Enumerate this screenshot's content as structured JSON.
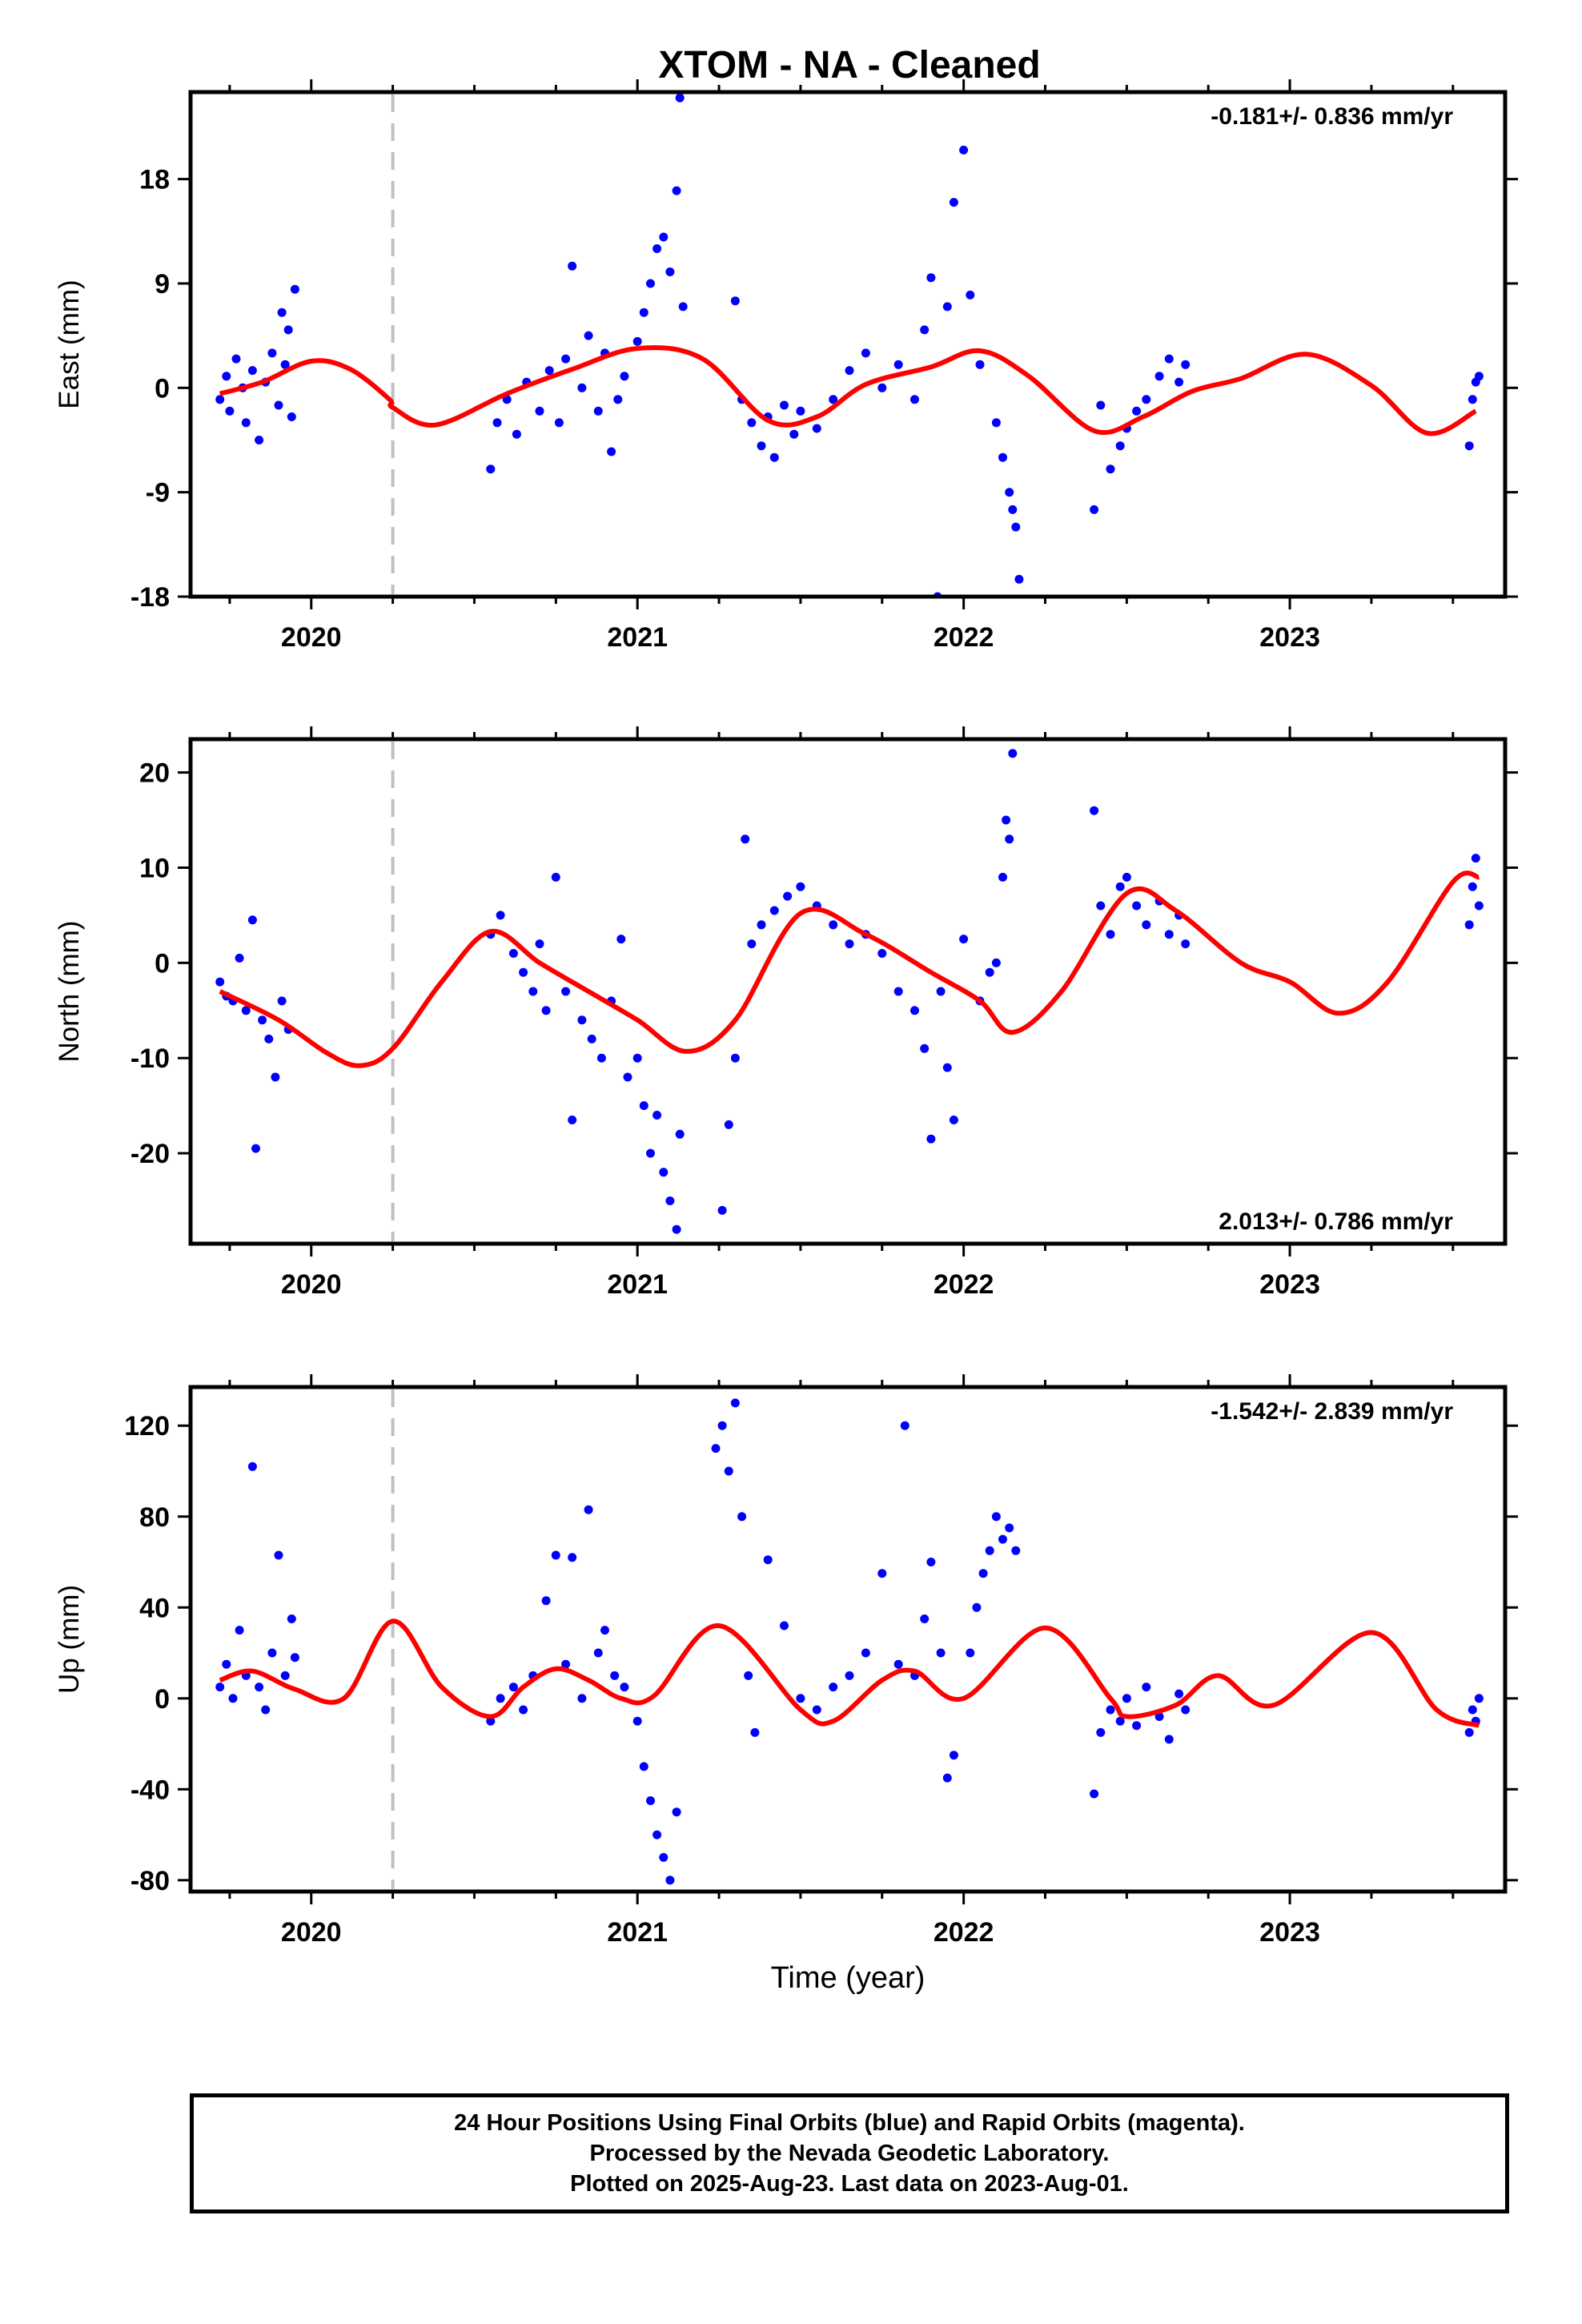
{
  "title": "XTOM  - NA - Cleaned",
  "x_axis": {
    "label": "Time (year)",
    "range": [
      2019.63,
      2023.66
    ],
    "ticks": [
      2020,
      2021,
      2022,
      2023
    ]
  },
  "reference_line": {
    "x": 2020.25,
    "style": "dashed",
    "color": "#c0c0c0"
  },
  "colors": {
    "points": "#0000ff",
    "model": "#ff0000"
  },
  "footer": {
    "line1": "24 Hour Positions Using Final Orbits (blue) and Rapid Orbits (magenta).",
    "line2": "Processed by the Nevada Geodetic Laboratory.",
    "line3": "Plotted on 2025-Aug-23. Last data on 2023-Aug-01."
  },
  "chart_data": [
    {
      "type": "scatter",
      "name": "east",
      "ylabel": "East (mm)",
      "ylim": [
        -18,
        25.5
      ],
      "yticks": [
        18,
        9,
        0,
        -9,
        -18
      ],
      "ytick_labels": [
        "18",
        "9",
        "0",
        "-9",
        "-18"
      ],
      "rate_text": "-0.181+/- 0.836 mm/yr",
      "rate_position": "top-right",
      "model_line": {
        "x": [
          2019.72,
          2019.85,
          2020.0,
          2020.12,
          2020.24,
          2020.25,
          2020.38,
          2020.6,
          2020.8,
          2021.0,
          2021.2,
          2021.4,
          2021.55,
          2021.7,
          2021.9,
          2022.05,
          2022.2,
          2022.4,
          2022.55,
          2022.7,
          2022.85,
          2023.05,
          2023.25,
          2023.42,
          2023.57
        ],
        "y": [
          -0.5,
          0.5,
          2.3,
          1.6,
          -1.0,
          -1.7,
          -3.2,
          -0.5,
          1.6,
          3.4,
          2.5,
          -2.8,
          -2.5,
          0.3,
          1.8,
          3.2,
          1.0,
          -3.7,
          -2.5,
          -0.3,
          0.8,
          2.9,
          0.2,
          -3.9,
          -2.0
        ]
      },
      "points": [
        [
          2019.72,
          -1.0
        ],
        [
          2019.74,
          1.0
        ],
        [
          2019.75,
          -2.0
        ],
        [
          2019.77,
          2.5
        ],
        [
          2019.79,
          0.0
        ],
        [
          2019.8,
          -3.0
        ],
        [
          2019.82,
          1.5
        ],
        [
          2019.84,
          -4.5
        ],
        [
          2019.86,
          0.5
        ],
        [
          2019.88,
          3.0
        ],
        [
          2019.9,
          -1.5
        ],
        [
          2019.91,
          6.5
        ],
        [
          2019.92,
          2.0
        ],
        [
          2019.93,
          5.0
        ],
        [
          2019.94,
          -2.5
        ],
        [
          2019.95,
          8.5
        ],
        [
          2020.55,
          -7.0
        ],
        [
          2020.57,
          -3.0
        ],
        [
          2020.6,
          -1.0
        ],
        [
          2020.63,
          -4.0
        ],
        [
          2020.66,
          0.5
        ],
        [
          2020.7,
          -2.0
        ],
        [
          2020.73,
          1.5
        ],
        [
          2020.76,
          -3.0
        ],
        [
          2020.78,
          2.5
        ],
        [
          2020.8,
          10.5
        ],
        [
          2020.83,
          0.0
        ],
        [
          2020.85,
          4.5
        ],
        [
          2020.88,
          -2.0
        ],
        [
          2020.9,
          3.0
        ],
        [
          2020.92,
          -5.5
        ],
        [
          2020.94,
          -1.0
        ],
        [
          2020.96,
          1.0
        ],
        [
          2021.0,
          4.0
        ],
        [
          2021.02,
          6.5
        ],
        [
          2021.04,
          9.0
        ],
        [
          2021.06,
          12.0
        ],
        [
          2021.08,
          13.0
        ],
        [
          2021.1,
          10.0
        ],
        [
          2021.12,
          17.0
        ],
        [
          2021.13,
          25.0
        ],
        [
          2021.14,
          7.0
        ],
        [
          2021.3,
          7.5
        ],
        [
          2021.32,
          -1.0
        ],
        [
          2021.35,
          -3.0
        ],
        [
          2021.38,
          -5.0
        ],
        [
          2021.4,
          -2.5
        ],
        [
          2021.42,
          -6.0
        ],
        [
          2021.45,
          -1.5
        ],
        [
          2021.48,
          -4.0
        ],
        [
          2021.5,
          -2.0
        ],
        [
          2021.55,
          -3.5
        ],
        [
          2021.6,
          -1.0
        ],
        [
          2021.65,
          1.5
        ],
        [
          2021.7,
          3.0
        ],
        [
          2021.75,
          0.0
        ],
        [
          2021.8,
          2.0
        ],
        [
          2021.85,
          -1.0
        ],
        [
          2021.88,
          5.0
        ],
        [
          2021.9,
          9.5
        ],
        [
          2021.92,
          -18.0
        ],
        [
          2021.95,
          7.0
        ],
        [
          2021.97,
          16.0
        ],
        [
          2022.0,
          20.5
        ],
        [
          2022.02,
          8.0
        ],
        [
          2022.05,
          2.0
        ],
        [
          2022.1,
          -3.0
        ],
        [
          2022.12,
          -6.0
        ],
        [
          2022.14,
          -9.0
        ],
        [
          2022.15,
          -10.5
        ],
        [
          2022.16,
          -12.0
        ],
        [
          2022.17,
          -16.5
        ],
        [
          2022.4,
          -10.5
        ],
        [
          2022.42,
          -1.5
        ],
        [
          2022.45,
          -7.0
        ],
        [
          2022.48,
          -5.0
        ],
        [
          2022.5,
          -3.5
        ],
        [
          2022.53,
          -2.0
        ],
        [
          2022.56,
          -1.0
        ],
        [
          2022.6,
          1.0
        ],
        [
          2022.63,
          2.5
        ],
        [
          2022.66,
          0.5
        ],
        [
          2022.68,
          2.0
        ],
        [
          2023.55,
          -5.0
        ],
        [
          2023.56,
          -1.0
        ],
        [
          2023.57,
          0.5
        ],
        [
          2023.58,
          1.0
        ]
      ]
    },
    {
      "type": "scatter",
      "name": "north",
      "ylabel": "North (mm)",
      "ylim": [
        -29.5,
        23.5
      ],
      "yticks": [
        20,
        10,
        0,
        -10,
        -20
      ],
      "ytick_labels": [
        "20",
        "10",
        "0",
        "-10",
        "-20"
      ],
      "rate_text": "2.013+/- 0.786 mm/yr",
      "rate_position": "bottom-right",
      "model_line": {
        "x": [
          2019.72,
          2019.9,
          2020.05,
          2020.15,
          2020.25,
          2020.4,
          2020.55,
          2020.7,
          2020.85,
          2021.0,
          2021.15,
          2021.3,
          2021.5,
          2021.7,
          2021.9,
          2022.05,
          2022.15,
          2022.3,
          2022.5,
          2022.65,
          2022.85,
          2023.0,
          2023.15,
          2023.3,
          2023.5,
          2023.58
        ],
        "y": [
          -3.0,
          -6.0,
          -9.5,
          -10.8,
          -9.0,
          -2.0,
          3.3,
          0.0,
          -3.0,
          -6.0,
          -9.3,
          -6.0,
          5.2,
          3.0,
          -1.0,
          -4.0,
          -7.3,
          -3.0,
          7.3,
          5.5,
          0.0,
          -2.0,
          -5.3,
          -2.0,
          8.5,
          9.0
        ]
      },
      "points": [
        [
          2019.72,
          -2.0
        ],
        [
          2019.74,
          -3.5
        ],
        [
          2019.76,
          -4.0
        ],
        [
          2019.78,
          0.5
        ],
        [
          2019.8,
          -5.0
        ],
        [
          2019.82,
          4.5
        ],
        [
          2019.83,
          -19.5
        ],
        [
          2019.85,
          -6.0
        ],
        [
          2019.87,
          -8.0
        ],
        [
          2019.89,
          -12.0
        ],
        [
          2019.91,
          -4.0
        ],
        [
          2019.93,
          -7.0
        ],
        [
          2020.55,
          3.0
        ],
        [
          2020.58,
          5.0
        ],
        [
          2020.62,
          1.0
        ],
        [
          2020.65,
          -1.0
        ],
        [
          2020.68,
          -3.0
        ],
        [
          2020.7,
          2.0
        ],
        [
          2020.72,
          -5.0
        ],
        [
          2020.75,
          9.0
        ],
        [
          2020.78,
          -3.0
        ],
        [
          2020.8,
          -16.5
        ],
        [
          2020.83,
          -6.0
        ],
        [
          2020.86,
          -8.0
        ],
        [
          2020.89,
          -10.0
        ],
        [
          2020.92,
          -4.0
        ],
        [
          2020.95,
          2.5
        ],
        [
          2020.97,
          -12.0
        ],
        [
          2021.0,
          -10.0
        ],
        [
          2021.02,
          -15.0
        ],
        [
          2021.04,
          -20.0
        ],
        [
          2021.06,
          -16.0
        ],
        [
          2021.08,
          -22.0
        ],
        [
          2021.1,
          -25.0
        ],
        [
          2021.12,
          -28.0
        ],
        [
          2021.13,
          -18.0
        ],
        [
          2021.26,
          -26.0
        ],
        [
          2021.28,
          -17.0
        ],
        [
          2021.3,
          -10.0
        ],
        [
          2021.33,
          13.0
        ],
        [
          2021.35,
          2.0
        ],
        [
          2021.38,
          4.0
        ],
        [
          2021.42,
          5.5
        ],
        [
          2021.46,
          7.0
        ],
        [
          2021.5,
          8.0
        ],
        [
          2021.55,
          6.0
        ],
        [
          2021.6,
          4.0
        ],
        [
          2021.65,
          2.0
        ],
        [
          2021.7,
          3.0
        ],
        [
          2021.75,
          1.0
        ],
        [
          2021.8,
          -3.0
        ],
        [
          2021.85,
          -5.0
        ],
        [
          2021.88,
          -9.0
        ],
        [
          2021.9,
          -18.5
        ],
        [
          2021.93,
          -3.0
        ],
        [
          2021.95,
          -11.0
        ],
        [
          2021.97,
          -16.5
        ],
        [
          2022.0,
          2.5
        ],
        [
          2022.05,
          -4.0
        ],
        [
          2022.08,
          -1.0
        ],
        [
          2022.1,
          0.0
        ],
        [
          2022.12,
          9.0
        ],
        [
          2022.13,
          15.0
        ],
        [
          2022.14,
          13.0
        ],
        [
          2022.15,
          22.0
        ],
        [
          2022.4,
          16.0
        ],
        [
          2022.42,
          6.0
        ],
        [
          2022.45,
          3.0
        ],
        [
          2022.48,
          8.0
        ],
        [
          2022.5,
          9.0
        ],
        [
          2022.53,
          6.0
        ],
        [
          2022.56,
          4.0
        ],
        [
          2022.6,
          6.5
        ],
        [
          2022.63,
          3.0
        ],
        [
          2022.66,
          5.0
        ],
        [
          2022.68,
          2.0
        ],
        [
          2023.55,
          4.0
        ],
        [
          2023.56,
          8.0
        ],
        [
          2023.57,
          11.0
        ],
        [
          2023.58,
          6.0
        ]
      ]
    },
    {
      "type": "scatter",
      "name": "up",
      "ylabel": "Up (mm)",
      "ylim": [
        -85,
        137
      ],
      "yticks": [
        120,
        80,
        40,
        0,
        -40,
        -80
      ],
      "ytick_labels": [
        "120",
        "80",
        "40",
        "0",
        "-40",
        "-80"
      ],
      "rate_text": "-1.542+/- 2.839 mm/yr",
      "rate_position": "top-right",
      "model_line": {
        "x": [
          2019.72,
          2019.82,
          2019.95,
          2020.1,
          2020.25,
          2020.4,
          2020.55,
          2020.65,
          2020.75,
          2020.85,
          2020.95,
          2021.05,
          2021.25,
          2021.5,
          2021.6,
          2021.75,
          2021.85,
          2022.0,
          2022.25,
          2022.45,
          2022.5,
          2022.65,
          2022.78,
          2022.95,
          2023.25,
          2023.45,
          2023.58
        ],
        "y": [
          8,
          12,
          4,
          0,
          34,
          5,
          -8,
          5,
          13,
          8,
          0,
          1,
          32,
          -5,
          -10,
          8,
          12,
          0,
          31,
          0,
          -8,
          -3,
          10,
          -3,
          29,
          -5,
          -12
        ]
      },
      "points": [
        [
          2019.72,
          5
        ],
        [
          2019.74,
          15
        ],
        [
          2019.76,
          0
        ],
        [
          2019.78,
          30
        ],
        [
          2019.8,
          10
        ],
        [
          2019.82,
          102
        ],
        [
          2019.84,
          5
        ],
        [
          2019.86,
          -5
        ],
        [
          2019.88,
          20
        ],
        [
          2019.9,
          63
        ],
        [
          2019.92,
          10
        ],
        [
          2019.94,
          35
        ],
        [
          2019.95,
          18
        ],
        [
          2020.55,
          -10
        ],
        [
          2020.58,
          0
        ],
        [
          2020.62,
          5
        ],
        [
          2020.65,
          -5
        ],
        [
          2020.68,
          10
        ],
        [
          2020.72,
          43
        ],
        [
          2020.75,
          63
        ],
        [
          2020.78,
          15
        ],
        [
          2020.8,
          62
        ],
        [
          2020.83,
          0
        ],
        [
          2020.85,
          83
        ],
        [
          2020.88,
          20
        ],
        [
          2020.9,
          30
        ],
        [
          2020.93,
          10
        ],
        [
          2020.96,
          5
        ],
        [
          2021.0,
          -10
        ],
        [
          2021.02,
          -30
        ],
        [
          2021.04,
          -45
        ],
        [
          2021.06,
          -60
        ],
        [
          2021.08,
          -70
        ],
        [
          2021.1,
          -80
        ],
        [
          2021.12,
          -50
        ],
        [
          2021.24,
          110
        ],
        [
          2021.26,
          120
        ],
        [
          2021.28,
          100
        ],
        [
          2021.3,
          130
        ],
        [
          2021.32,
          80
        ],
        [
          2021.34,
          10
        ],
        [
          2021.36,
          -15
        ],
        [
          2021.4,
          61
        ],
        [
          2021.45,
          32
        ],
        [
          2021.5,
          0
        ],
        [
          2021.55,
          -5
        ],
        [
          2021.6,
          5
        ],
        [
          2021.65,
          10
        ],
        [
          2021.7,
          20
        ],
        [
          2021.75,
          55
        ],
        [
          2021.8,
          15
        ],
        [
          2021.82,
          120
        ],
        [
          2021.85,
          10
        ],
        [
          2021.88,
          35
        ],
        [
          2021.9,
          60
        ],
        [
          2021.93,
          20
        ],
        [
          2021.95,
          -35
        ],
        [
          2021.97,
          -25
        ],
        [
          2022.02,
          20
        ],
        [
          2022.04,
          40
        ],
        [
          2022.06,
          55
        ],
        [
          2022.08,
          65
        ],
        [
          2022.1,
          80
        ],
        [
          2022.12,
          70
        ],
        [
          2022.14,
          75
        ],
        [
          2022.16,
          65
        ],
        [
          2022.4,
          -42
        ],
        [
          2022.42,
          -15
        ],
        [
          2022.45,
          -5
        ],
        [
          2022.48,
          -10
        ],
        [
          2022.5,
          0
        ],
        [
          2022.53,
          -12
        ],
        [
          2022.56,
          5
        ],
        [
          2022.6,
          -8
        ],
        [
          2022.63,
          -18
        ],
        [
          2022.66,
          2
        ],
        [
          2022.68,
          -5
        ],
        [
          2023.55,
          -15
        ],
        [
          2023.56,
          -5
        ],
        [
          2023.57,
          -10
        ],
        [
          2023.58,
          0
        ]
      ]
    }
  ]
}
